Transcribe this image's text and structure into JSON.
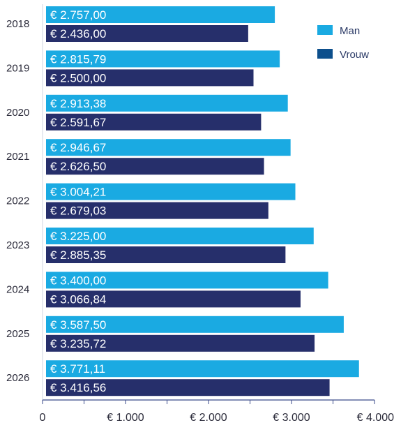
{
  "chart_data": {
    "type": "bar",
    "orientation": "horizontal",
    "categories": [
      "2018",
      "2019",
      "2020",
      "2021",
      "2022",
      "2023",
      "2024",
      "2025",
      "2026"
    ],
    "series": [
      {
        "name": "Man",
        "color": "#1aaae2",
        "values": [
          2757.0,
          2815.79,
          2913.38,
          2946.67,
          3004.21,
          3225.0,
          3400.0,
          3587.5,
          3771.11
        ],
        "labels": [
          "€ 2.757,00",
          "€ 2.815,79",
          "€ 2.913,38",
          "€ 2.946,67",
          "€ 3.004,21",
          "€ 3.225,00",
          "€ 3.400,00",
          "€ 3.587,50",
          "€ 3.771,11"
        ]
      },
      {
        "name": "Vrouw",
        "color": "#262f6b",
        "values": [
          2436.0,
          2500.0,
          2591.67,
          2626.5,
          2679.03,
          2885.35,
          3066.84,
          3235.72,
          3416.56
        ],
        "labels": [
          "€ 2.436,00",
          "€ 2.500,00",
          "€ 2.591,67",
          "€ 2.626,50",
          "€ 2.679,03",
          "€ 2.885,35",
          "€ 3.066,84",
          "€ 3.235,72",
          "€ 3.416,56"
        ]
      }
    ],
    "xlim": [
      0,
      4000
    ],
    "xticks": [
      0,
      1000,
      2000,
      3000,
      4000
    ],
    "xtick_labels": [
      "0",
      "€ 1.000",
      "€ 2.000",
      "€ 3.000",
      "€ 4.000"
    ],
    "legend_position": "top-right",
    "legend_marker_colors": [
      "#1aaae2",
      "#0d4f8c"
    ],
    "grid": false
  }
}
